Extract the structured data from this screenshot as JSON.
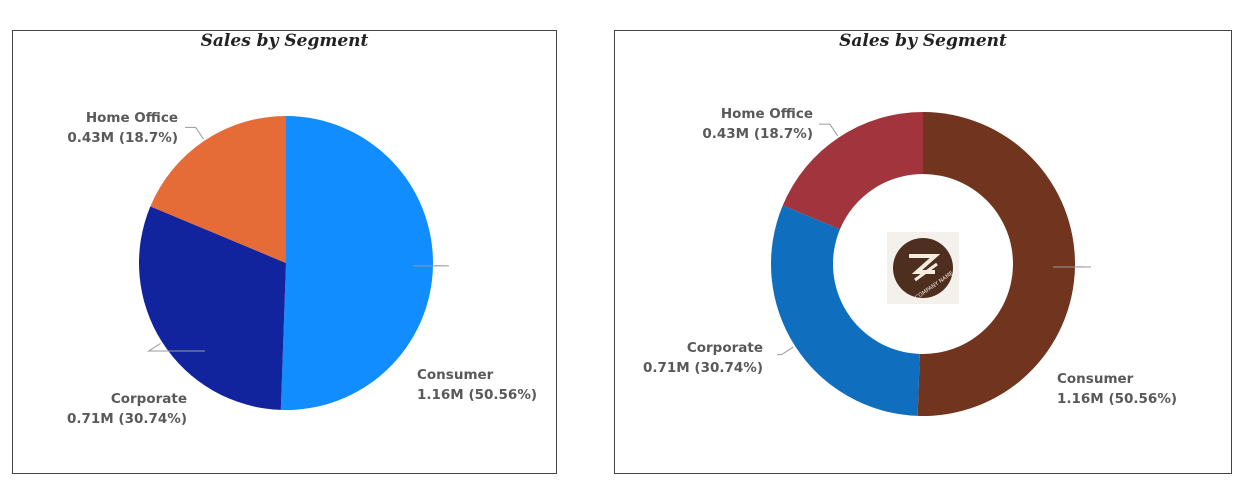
{
  "chart_data": [
    {
      "type": "pie",
      "title": "Sales by Segment",
      "slices": [
        {
          "name": "Consumer",
          "value": 1.16,
          "value_label": "1.16M (50.56%)",
          "percent": 50.56,
          "color": "#118DFF"
        },
        {
          "name": "Corporate",
          "value": 0.71,
          "value_label": "0.71M (30.74%)",
          "percent": 30.74,
          "color": "#12239E"
        },
        {
          "name": "Home Office",
          "value": 0.43,
          "value_label": "0.43M (18.7%)",
          "percent": 18.7,
          "color": "#E66C37"
        }
      ]
    },
    {
      "type": "pie",
      "variant": "donut",
      "title": "Sales by Segment",
      "slices": [
        {
          "name": "Consumer",
          "value": 1.16,
          "value_label": "1.16M (50.56%)",
          "percent": 50.56,
          "color": "#71341E"
        },
        {
          "name": "Corporate",
          "value": 0.71,
          "value_label": "0.71M (30.74%)",
          "percent": 30.74,
          "color": "#106EBE"
        },
        {
          "name": "Home Office",
          "value": 0.43,
          "value_label": "0.43M (18.7%)",
          "percent": 18.7,
          "color": "#A1343C"
        }
      ],
      "center_logo": {
        "icon": "company-logo-icon",
        "text": "COMPANY NAME",
        "color": "#4E2E1E"
      }
    }
  ]
}
